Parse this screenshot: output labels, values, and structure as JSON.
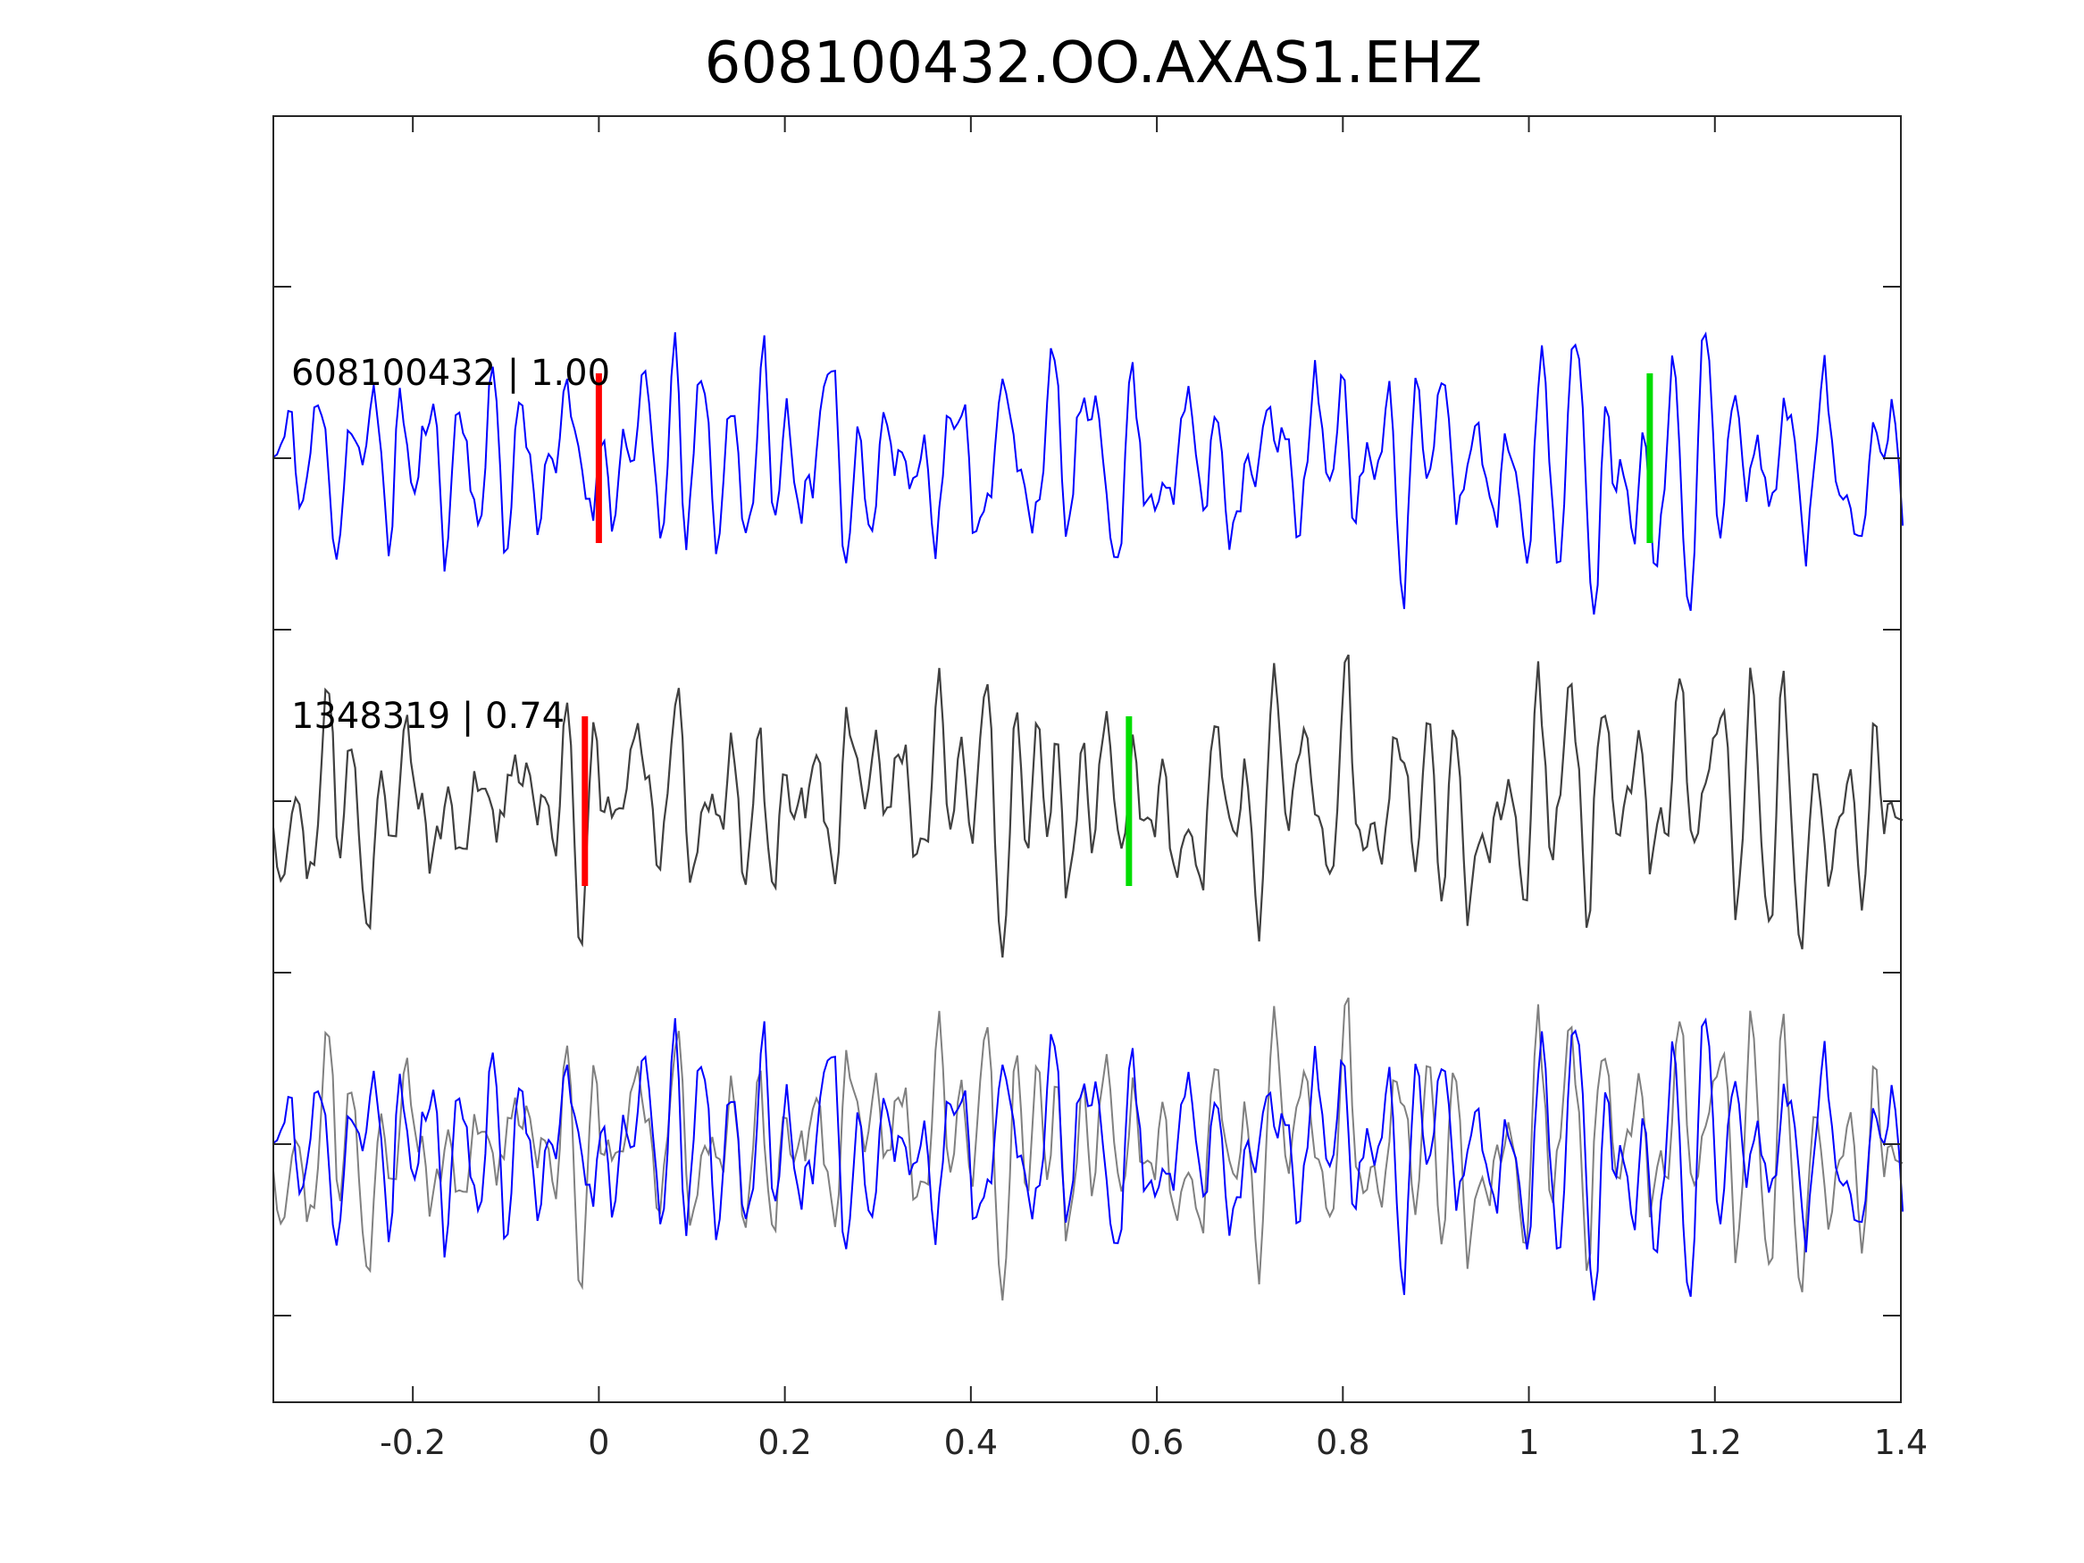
{
  "chart_data": {
    "type": "line",
    "title": "608100432.OO.AXAS1.EHZ",
    "xlabel": "",
    "ylabel": "",
    "xlim": [
      -0.35,
      1.4
    ],
    "xticks": [
      -0.2,
      0,
      0.2,
      0.4,
      0.6,
      0.8,
      1.0,
      1.2,
      1.4
    ],
    "xtick_labels": [
      "-0.2",
      "0",
      "0.2",
      "0.4",
      "0.6",
      "0.8",
      "1",
      "1.2",
      "1.4"
    ],
    "grid": false,
    "sample_interval": 0.004,
    "traces": [
      {
        "id": "top",
        "label": "608100432 | 1.00",
        "color": "#0000ff",
        "offset_index": 0,
        "pick_p": 0.0,
        "pick_s": 1.13,
        "pick_p_color": "#ff0000",
        "pick_s_color": "#00dd00",
        "seed": 11
      },
      {
        "id": "middle",
        "label": "1348319 | 0.74",
        "color": "#404040",
        "offset_index": 1,
        "pick_p": -0.015,
        "pick_s": 0.57,
        "pick_p_color": "#ff0000",
        "pick_s_color": "#00dd00",
        "seed": 29
      },
      {
        "id": "overlay-gray",
        "label": "",
        "color": "#808080",
        "offset_index": 2,
        "copy_of": "middle",
        "seed": 29
      },
      {
        "id": "overlay-blue",
        "label": "",
        "color": "#0000ff",
        "offset_index": 2,
        "copy_of": "top",
        "seed": 11
      }
    ]
  }
}
